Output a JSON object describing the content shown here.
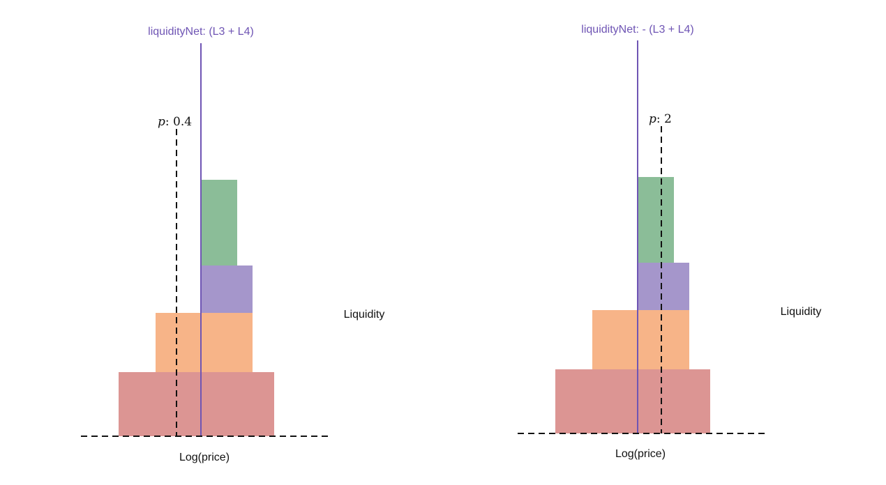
{
  "colors": {
    "tick_line": "#6f55b4",
    "green": "#8bbd98",
    "purple": "#a596cb",
    "orange": "#f7b488",
    "red": "#dc9593",
    "dashed": "#111111"
  },
  "panels": [
    {
      "title": "liquidityNet: (L3 + L4)",
      "price_label": "p: 0.4",
      "price_symbol": "p",
      "price_value": ": 0.4",
      "y_label": "Liquidity",
      "x_label": "Log(price)"
    },
    {
      "title": "liquidityNet: - (L3 + L4)",
      "price_symbol": "p",
      "price_value": ": 2",
      "y_label": "Liquidity",
      "x_label": "Log(price)"
    }
  ]
}
